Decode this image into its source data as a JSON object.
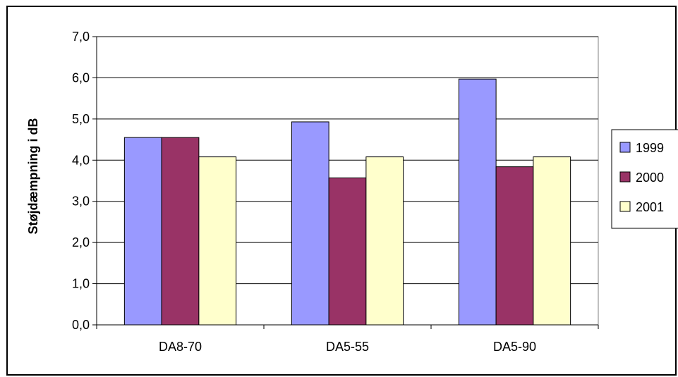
{
  "chart_data": {
    "type": "bar",
    "categories": [
      "DA8-70",
      "DA5-55",
      "DA5-90"
    ],
    "series": [
      {
        "name": "1999",
        "values": [
          4.55,
          4.93,
          5.97
        ],
        "color": "#9999ff"
      },
      {
        "name": "2000",
        "values": [
          4.55,
          3.57,
          3.84
        ],
        "color": "#993366"
      },
      {
        "name": "2001",
        "values": [
          4.08,
          4.08,
          4.08
        ],
        "color": "#ffffcc"
      }
    ],
    "ylabel": "Støjdæmpning i dB",
    "ylim": [
      0,
      7
    ],
    "yticks": [
      "0,0",
      "1,0",
      "2,0",
      "3,0",
      "4,0",
      "5,0",
      "6,0",
      "7,0"
    ],
    "grid": true,
    "plot_background": "#ffffff",
    "legend_position": "right"
  }
}
